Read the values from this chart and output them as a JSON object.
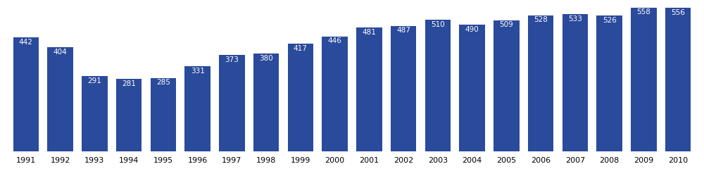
{
  "years": [
    1991,
    1992,
    1993,
    1994,
    1995,
    1996,
    1997,
    1998,
    1999,
    2000,
    2001,
    2002,
    2003,
    2004,
    2005,
    2006,
    2007,
    2008,
    2009,
    2010
  ],
  "values": [
    442,
    404,
    291,
    281,
    285,
    331,
    373,
    380,
    417,
    446,
    481,
    487,
    510,
    490,
    509,
    528,
    533,
    526,
    558,
    556
  ],
  "bar_color": "#2a4a9b",
  "label_color": "#FFFFFF",
  "label_fontsize": 7.5,
  "tick_fontsize": 8.0,
  "background_color": "#FFFFFF",
  "ylim": [
    0,
    580
  ],
  "bar_width": 0.75
}
